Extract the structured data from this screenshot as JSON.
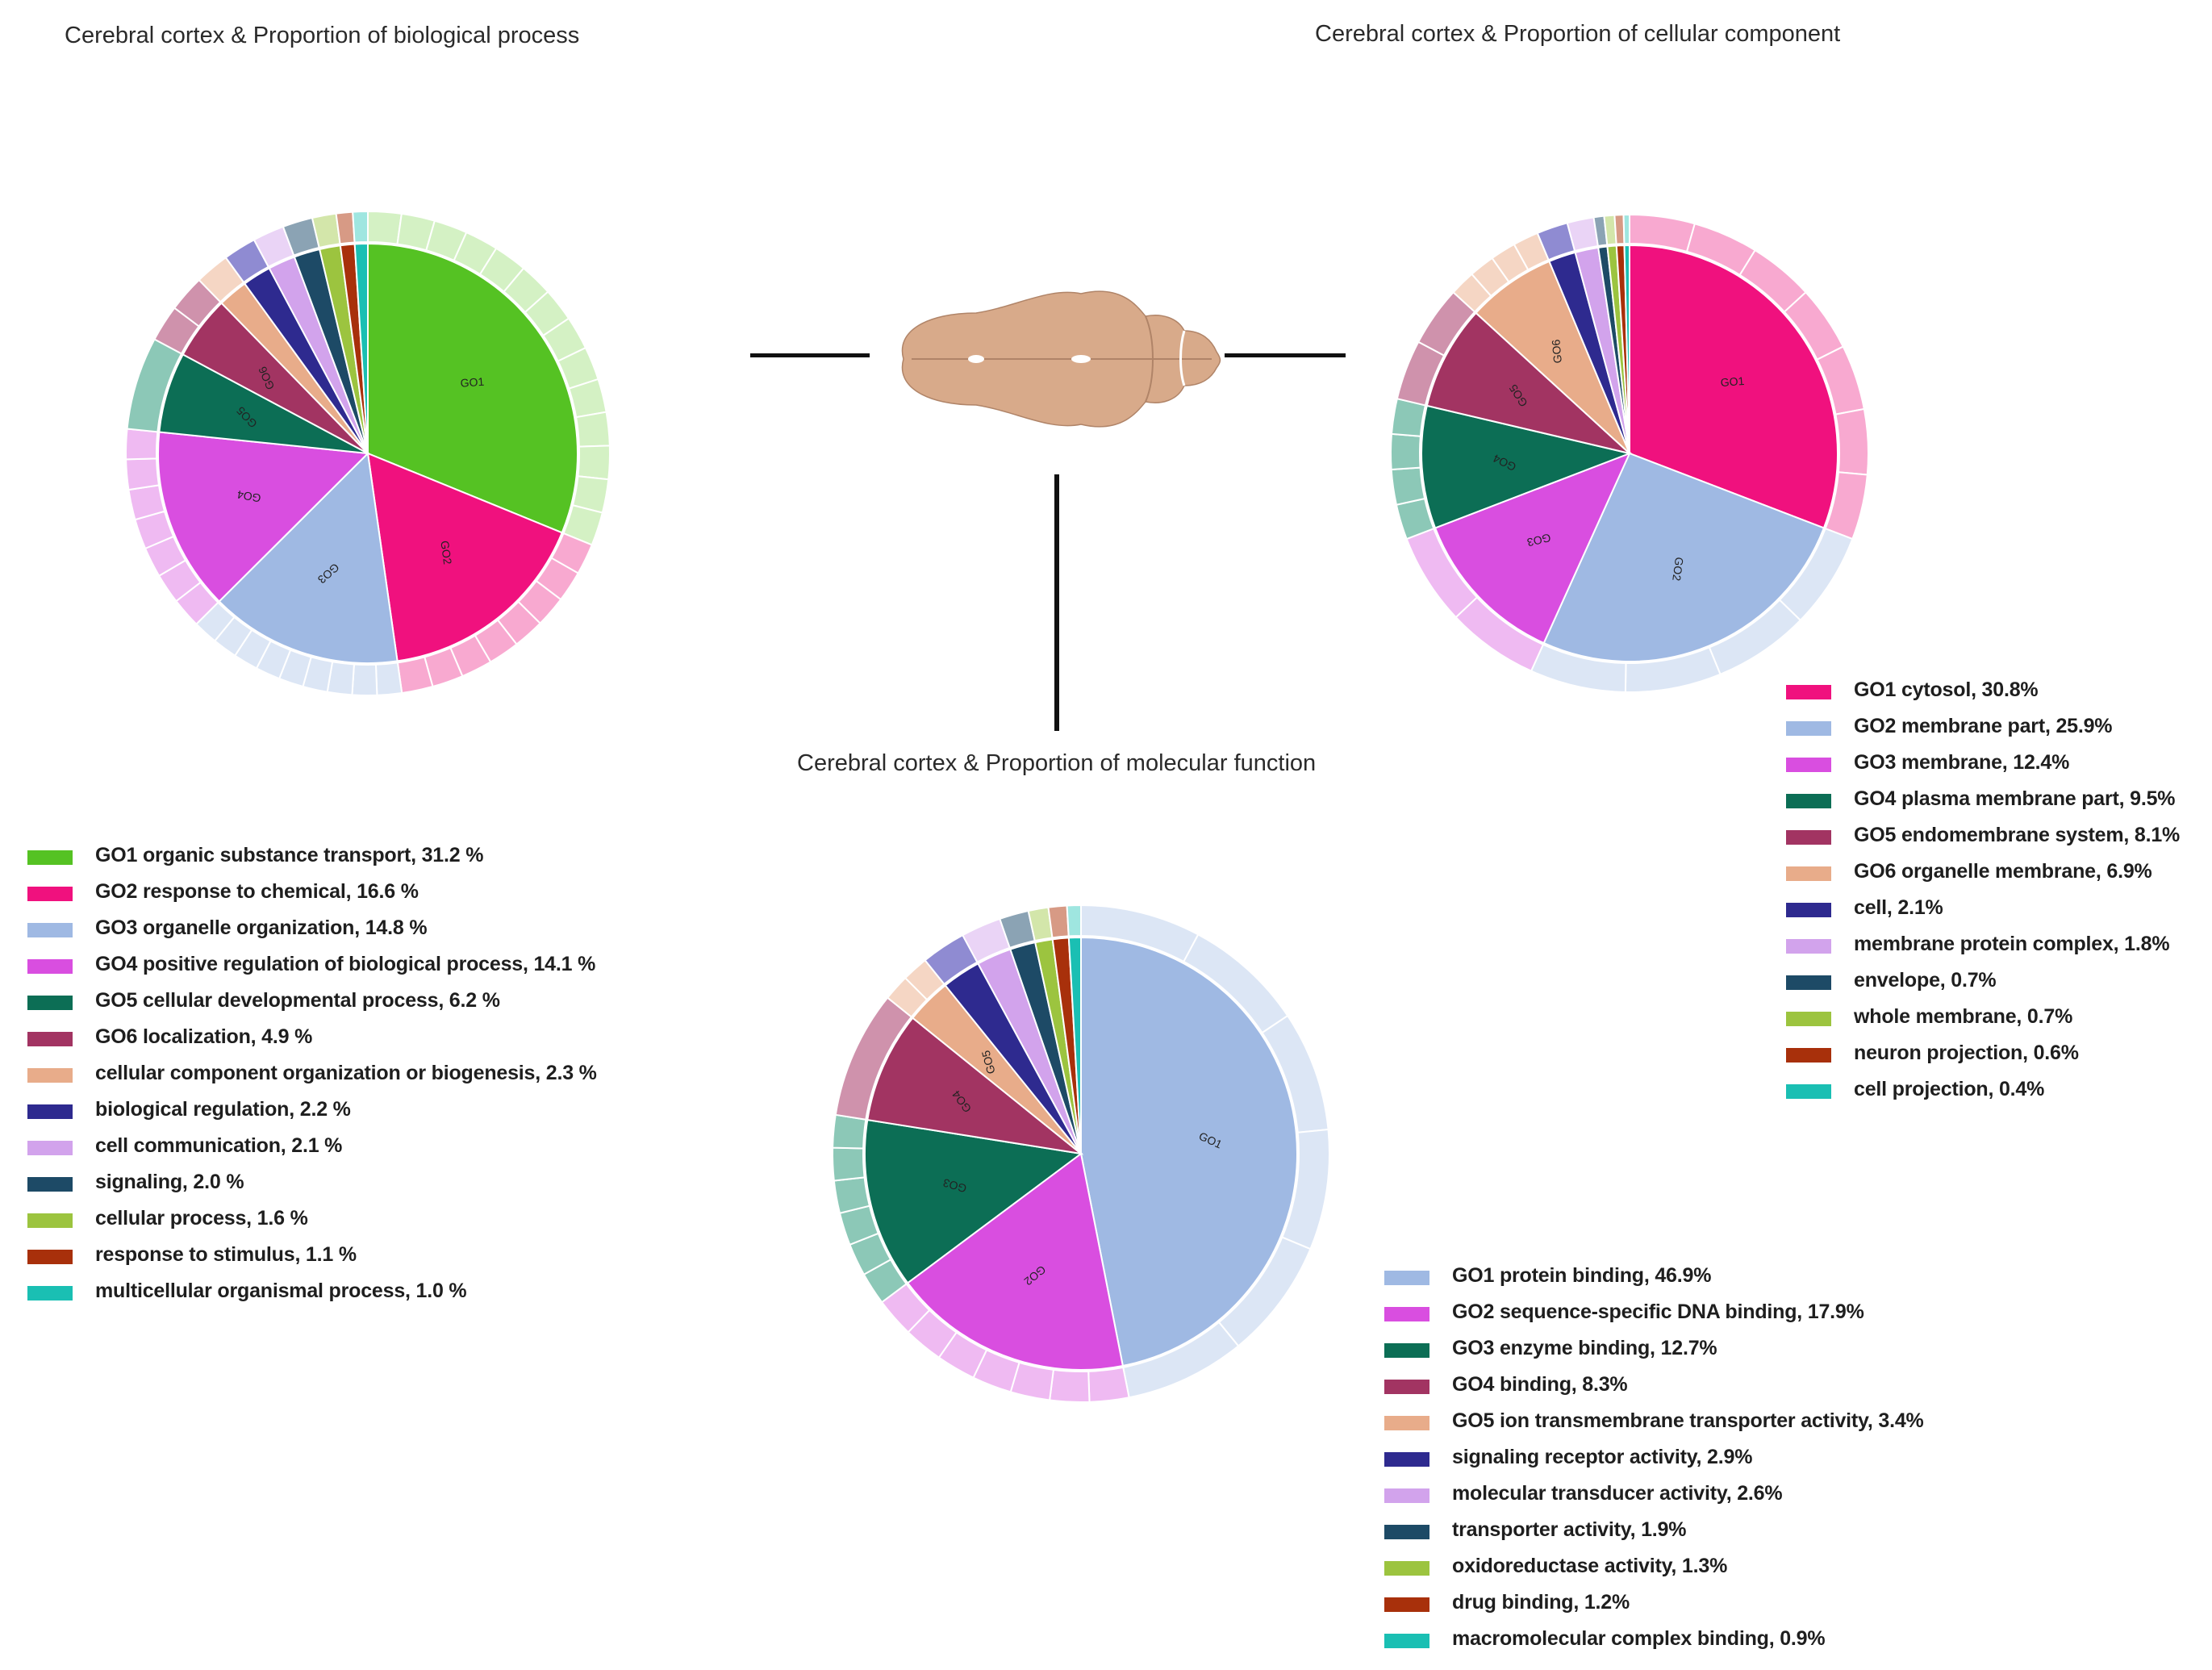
{
  "charts": {
    "biological_process": {
      "title": "Cerebral cortex & Proportion of biological process",
      "legend": [
        {
          "label": "GO1 organic substance transport, 31.2 %",
          "color": "#55c223"
        },
        {
          "label": "GO2 response to chemical, 16.6 %",
          "color": "#f0117e"
        },
        {
          "label": "GO3 organelle organization, 14.8 %",
          "color": "#9fb9e3"
        },
        {
          "label": "GO4 positive regulation of biological process, 14.1 %",
          "color": "#d94ee0"
        },
        {
          "label": "GO5 cellular developmental process, 6.2 %",
          "color": "#0c6e55"
        },
        {
          "label": "GO6 localization, 4.9 %",
          "color": "#a23462"
        },
        {
          "label": "cellular component organization or biogenesis, 2.3 %",
          "color": "#e8ac8a"
        },
        {
          "label": "biological regulation, 2.2 %",
          "color": "#2e2a8f"
        },
        {
          "label": "cell communication, 2.1 %",
          "color": "#d2a3ec"
        },
        {
          "label": "signaling, 2.0 %",
          "color": "#1d4a66"
        },
        {
          "label": "cellular process, 1.6 %",
          "color": "#9cc43f"
        },
        {
          "label": "response to stimulus, 1.1 %",
          "color": "#a8300b"
        },
        {
          "label": "multicellular organismal process, 1.0 %",
          "color": "#1abfb3"
        }
      ]
    },
    "cellular_component": {
      "title": "Cerebral cortex & Proportion of cellular component",
      "legend": [
        {
          "label": "GO1 cytosol, 30.8%",
          "color": "#f0117e"
        },
        {
          "label": "GO2 membrane part, 25.9%",
          "color": "#9fb9e3"
        },
        {
          "label": "GO3 membrane, 12.4%",
          "color": "#d94ee0"
        },
        {
          "label": "GO4 plasma membrane part, 9.5%",
          "color": "#0c6e55"
        },
        {
          "label": "GO5 endomembrane system, 8.1%",
          "color": "#a23462"
        },
        {
          "label": "GO6 organelle membrane, 6.9%",
          "color": "#e8ac8a"
        },
        {
          "label": "cell, 2.1%",
          "color": "#2e2a8f"
        },
        {
          "label": "membrane protein complex, 1.8%",
          "color": "#d2a3ec"
        },
        {
          "label": "envelope, 0.7%",
          "color": "#1d4a66"
        },
        {
          "label": "whole membrane, 0.7%",
          "color": "#9cc43f"
        },
        {
          "label": "neuron projection, 0.6%",
          "color": "#a8300b"
        },
        {
          "label": "cell projection, 0.4%",
          "color": "#1abfb3"
        }
      ]
    },
    "molecular_function": {
      "title": "Cerebral cortex & Proportion of molecular function",
      "legend": [
        {
          "label": "GO1 protein binding, 46.9%",
          "color": "#9fb9e3"
        },
        {
          "label": "GO2 sequence-specific DNA binding, 17.9%",
          "color": "#d94ee0"
        },
        {
          "label": "GO3 enzyme binding, 12.7%",
          "color": "#0c6e55"
        },
        {
          "label": "GO4 binding, 8.3%",
          "color": "#a23462"
        },
        {
          "label": "GO5 ion transmembrane transporter activity, 3.4%",
          "color": "#e8ac8a"
        },
        {
          "label": "signaling receptor activity, 2.9%",
          "color": "#2e2a8f"
        },
        {
          "label": "molecular transducer activity, 2.6%",
          "color": "#d2a3ec"
        },
        {
          "label": "transporter activity, 1.9%",
          "color": "#1d4a66"
        },
        {
          "label": "oxidoreductase activity, 1.3%",
          "color": "#9cc43f"
        },
        {
          "label": "drug binding, 1.2%",
          "color": "#a8300b"
        },
        {
          "label": "macromolecular complex binding, 0.9%",
          "color": "#1abfb3"
        }
      ]
    }
  },
  "chart_data": [
    {
      "type": "pie",
      "title": "Cerebral cortex & Proportion of biological process",
      "categories": [
        "GO1 organic substance transport",
        "GO2 response to chemical",
        "GO3 organelle organization",
        "GO4 positive regulation of biological process",
        "GO5 cellular developmental process",
        "GO6 localization",
        "cellular component organization or biogenesis",
        "biological regulation",
        "cell communication",
        "signaling",
        "cellular process",
        "response to stimulus",
        "multicellular organismal process"
      ],
      "values": [
        31.2,
        16.6,
        14.8,
        14.1,
        6.2,
        4.9,
        2.3,
        2.2,
        2.1,
        2.0,
        1.6,
        1.1,
        1.0
      ],
      "slice_labels": [
        "GO1",
        "GO2",
        "GO3",
        "GO4",
        "GO5",
        "GO6",
        "",
        "",
        "",
        "",
        "",
        "",
        ""
      ],
      "colors": [
        "#55c223",
        "#f0117e",
        "#9fb9e3",
        "#d94ee0",
        "#0c6e55",
        "#a23462",
        "#e8ac8a",
        "#2e2a8f",
        "#d2a3ec",
        "#1d4a66",
        "#9cc43f",
        "#a8300b",
        "#1abfb3"
      ],
      "light_colors": [
        "#d4f1c4",
        "#f8a9d0",
        "#dce6f5",
        "#efbaf2",
        "#8cc8b7",
        "#cf92ac",
        "#f5d6c4",
        "#8f8bd2",
        "#ead4f6",
        "#8ba3b4",
        "#d3e6aa",
        "#d79a85",
        "#9fe6e0"
      ],
      "sub_counts": [
        14,
        8,
        9,
        7,
        1,
        2,
        1,
        1,
        1,
        1,
        1,
        1,
        1
      ]
    },
    {
      "type": "pie",
      "title": "Cerebral cortex & Proportion of cellular component",
      "categories": [
        "GO1 cytosol",
        "GO2 membrane part",
        "GO3 membrane",
        "GO4 plasma membrane part",
        "GO5 endomembrane system",
        "GO6 organelle membrane",
        "cell",
        "membrane protein complex",
        "envelope",
        "whole membrane",
        "neuron projection",
        "cell projection"
      ],
      "values": [
        30.8,
        25.9,
        12.4,
        9.5,
        8.1,
        6.9,
        2.1,
        1.8,
        0.7,
        0.7,
        0.6,
        0.4
      ],
      "slice_labels": [
        "GO1",
        "GO2",
        "GO3",
        "GO4",
        "GO5",
        "GO6",
        "",
        "",
        "",
        "",
        "",
        ""
      ],
      "colors": [
        "#f0117e",
        "#9fb9e3",
        "#d94ee0",
        "#0c6e55",
        "#a23462",
        "#e8ac8a",
        "#2e2a8f",
        "#d2a3ec",
        "#1d4a66",
        "#9cc43f",
        "#a8300b",
        "#1abfb3"
      ],
      "light_colors": [
        "#f8a9d0",
        "#dce6f5",
        "#efbaf2",
        "#8cc8b7",
        "#cf92ac",
        "#f5d6c4",
        "#8f8bd2",
        "#ead4f6",
        "#8ba3b4",
        "#d3e6aa",
        "#d79a85",
        "#9fe6e0"
      ],
      "sub_counts": [
        7,
        4,
        2,
        4,
        2,
        4,
        1,
        1,
        1,
        1,
        1,
        1
      ]
    },
    {
      "type": "pie",
      "title": "Cerebral cortex & Proportion of molecular function",
      "categories": [
        "GO1 protein binding",
        "GO2 sequence-specific DNA binding",
        "GO3 enzyme binding",
        "GO4 binding",
        "GO5 ion transmembrane transporter activity",
        "signaling receptor activity",
        "molecular transducer activity",
        "transporter activity",
        "oxidoreductase activity",
        "drug binding",
        "macromolecular complex binding"
      ],
      "values": [
        46.9,
        17.9,
        12.7,
        8.3,
        3.4,
        2.9,
        2.6,
        1.9,
        1.3,
        1.2,
        0.9
      ],
      "slice_labels": [
        "GO1",
        "GO2",
        "GO3",
        "GO4",
        "GO5",
        "",
        "",
        "",
        "",
        "",
        ""
      ],
      "colors": [
        "#9fb9e3",
        "#d94ee0",
        "#0c6e55",
        "#a23462",
        "#e8ac8a",
        "#2e2a8f",
        "#d2a3ec",
        "#1d4a66",
        "#9cc43f",
        "#a8300b",
        "#1abfb3"
      ],
      "light_colors": [
        "#dce6f5",
        "#efbaf2",
        "#8cc8b7",
        "#cf92ac",
        "#f5d6c4",
        "#8f8bd2",
        "#ead4f6",
        "#8ba3b4",
        "#d3e6aa",
        "#d79a85",
        "#9fe6e0"
      ],
      "sub_counts": [
        6,
        7,
        6,
        1,
        2,
        1,
        1,
        1,
        1,
        1,
        1
      ]
    }
  ]
}
